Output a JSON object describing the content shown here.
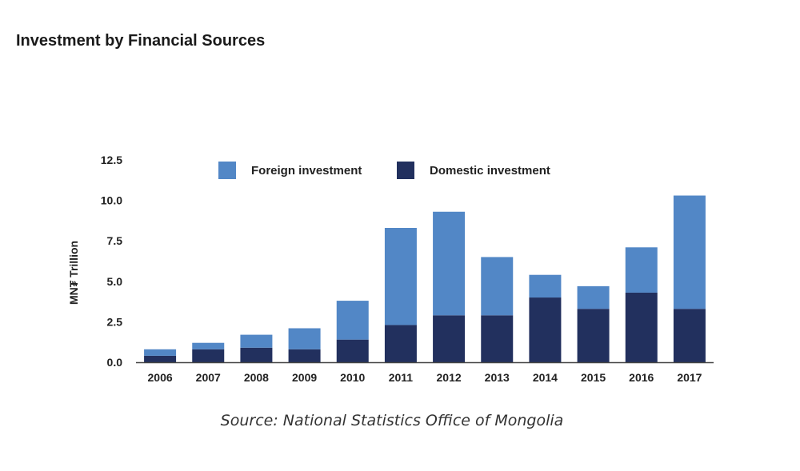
{
  "page": {
    "title": "Investment by Financial Sources",
    "source": "Source: National Statistics Office of Mongolia"
  },
  "colors": {
    "foreign": "#5287c6",
    "domestic": "#22305e",
    "axis": "#444444"
  },
  "chart_data": {
    "type": "bar",
    "stacked": true,
    "categories": [
      "2006",
      "2007",
      "2008",
      "2009",
      "2010",
      "2011",
      "2012",
      "2013",
      "2014",
      "2015",
      "2016",
      "2017"
    ],
    "series": [
      {
        "name": "Domestic investment",
        "values": [
          0.4,
          0.8,
          0.9,
          0.8,
          1.4,
          2.3,
          2.9,
          2.9,
          4.0,
          3.3,
          4.3,
          3.3
        ]
      },
      {
        "name": "Foreign investment",
        "values": [
          0.4,
          0.4,
          0.8,
          1.3,
          2.4,
          6.0,
          6.4,
          3.6,
          1.4,
          1.4,
          2.8,
          7.0
        ]
      }
    ],
    "title": "",
    "xlabel": "",
    "ylabel": "MN₮ Trillion",
    "ylim": [
      0,
      12.5
    ],
    "yticks": [
      "0.0",
      "2.5",
      "5.0",
      "7.5",
      "10.0",
      "12.5"
    ],
    "legend": {
      "placement": "top",
      "order": [
        "Foreign investment",
        "Domestic investment"
      ]
    },
    "grid": false
  }
}
